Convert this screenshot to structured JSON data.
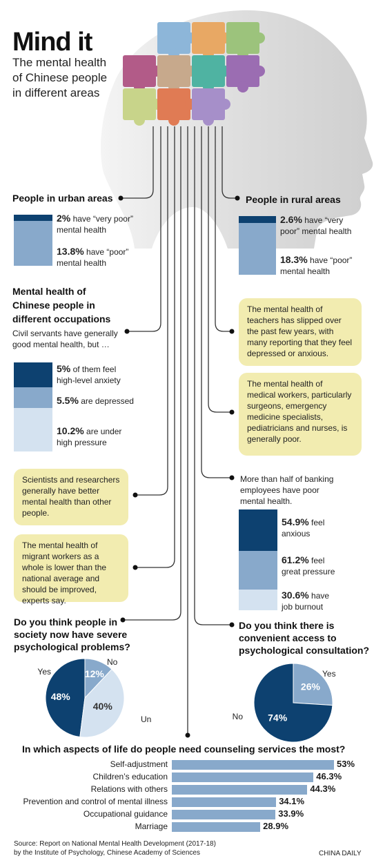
{
  "title": "Mind it",
  "subtitle": "The mental health of Chinese people in different areas",
  "urban": {
    "heading": "People in urban areas",
    "very_poor_pct": "2%",
    "very_poor_text": " have “very poor”",
    "very_poor_text2": "mental health",
    "poor_pct": "13.8%",
    "poor_text": " have “poor”",
    "poor_text2": "mental health",
    "values": [
      2,
      13.8
    ]
  },
  "rural": {
    "heading": "People in rural areas",
    "very_poor_pct": "2.6%",
    "very_poor_text": " have “very",
    "very_poor_text2": "poor” mental health",
    "poor_pct": "18.3%",
    "poor_text": " have “poor”",
    "poor_text2": "mental health",
    "values": [
      2.6,
      18.3
    ]
  },
  "occupations": {
    "heading1": "Mental health of",
    "heading2": "Chinese people in",
    "heading3": "different occupations",
    "civil1": "Civil servants have generally",
    "civil2": "good mental health, but …",
    "anxiety_pct": "5%",
    "anxiety_text": " of them feel",
    "anxiety_text2": "high-level anxiety",
    "depressed_pct": "5.5%",
    "depressed_text": " are depressed",
    "pressure_pct": "10.2%",
    "pressure_text": " are under",
    "pressure_text2": "high pressure",
    "values": [
      5,
      5.5,
      10.2
    ]
  },
  "notes": {
    "teachers": "The mental health of teachers has slipped over the past few years, with many reporting that they feel depressed or anxious.",
    "medical": "The mental health of medical workers, particularly surgeons, emergency medicine specialists, pediatricians and nurses, is generally poor.",
    "scientists": "Scientists and researchers generally have better mental health than other people.",
    "migrant": "The mental health of migrant workers as a whole is lower than the national average and should be improved, experts say."
  },
  "banking": {
    "intro1": "More than half of banking",
    "intro2": "employees have poor",
    "intro3": "mental health.",
    "anxious_pct": "54.9%",
    "anxious_text": " feel",
    "anxious_text2": "anxious",
    "pressure_pct": "61.2%",
    "pressure_text": " feel",
    "pressure_text2": "great pressure",
    "burnout_pct": "30.6%",
    "burnout_text": " have",
    "burnout_text2": "job burnout",
    "values": [
      54.9,
      61.2,
      30.6
    ]
  },
  "chart_data": [
    {
      "type": "pie",
      "title": "Do you think people in society now have severe psychological problems?",
      "title1": "Do you think people in",
      "title2": "society now have severe",
      "title3": "psychological problems?",
      "labels": [
        "Yes",
        "No",
        "Unsure"
      ],
      "values": [
        48,
        12,
        40
      ],
      "value_labels": [
        "48%",
        "12%",
        "40%"
      ],
      "colors": [
        "#0d4170",
        "#88a9cb",
        "#d4e2f0"
      ]
    },
    {
      "type": "pie",
      "title": "Do you think there is convenient access to psychological consultation?",
      "title1": "Do you think there is",
      "title2": "convenient access to",
      "title3": "psychological consultation?",
      "labels": [
        "Yes",
        "No"
      ],
      "values": [
        26,
        74
      ],
      "value_labels": [
        "26%",
        "74%"
      ],
      "colors": [
        "#88a9cb",
        "#0d4170"
      ]
    },
    {
      "type": "bar",
      "orientation": "horizontal",
      "title": "In which aspects of life do people need counseling services the most?",
      "categories": [
        "Self-adjustment",
        "Children’s education",
        "Relations with others",
        "Prevention and control of mental illness",
        "Occupational guidance",
        "Marriage"
      ],
      "values": [
        53,
        46.3,
        44.3,
        34.1,
        33.9,
        28.9
      ],
      "value_labels": [
        "53%",
        "46.3%",
        "44.3%",
        "34.1%",
        "33.9%",
        "28.9%"
      ],
      "color": "#88a9cb"
    }
  ],
  "footer": {
    "source1": "Source: Report on National Mental Health Development (2017-18)",
    "source2": "by the Institute of Psychology, Chinese Academy of Sciences",
    "credit": "CHINA DAILY"
  },
  "colors": {
    "dark": "#0d4170",
    "mid": "#88a9cb",
    "light": "#d4e2f0",
    "note": "#f2ecb0",
    "head": "#e6e6e6"
  },
  "icons": [
    "head-silhouette",
    "puzzle-pieces"
  ]
}
